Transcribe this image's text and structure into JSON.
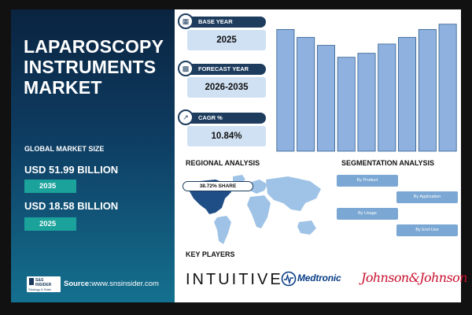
{
  "title": {
    "line1": "LAPAROSCOPY",
    "line2": "INSTRUMENTS",
    "line3": "MARKET"
  },
  "market_size": {
    "label": "GLOBAL MARKET SIZE",
    "value_2035": "USD 51.99 BILLION",
    "year_2035": "2035",
    "value_2025": "USD 18.58 BILLION",
    "year_2025": "2025"
  },
  "source": {
    "logo_line1": "S&S",
    "logo_line2": "INSIDER",
    "logo_tagline": "Strategy & Stats",
    "label": "Source:",
    "url": "www.snsinsider.com"
  },
  "cards": [
    {
      "heading": "BASE YEAR",
      "value": "2025",
      "icon": "calendar-icon"
    },
    {
      "heading": "FORECAST YEAR",
      "value": "2026-2035",
      "icon": "chart-icon"
    },
    {
      "heading": "CAGR %",
      "value": "10.84%",
      "icon": "growth-icon"
    }
  ],
  "regional": {
    "title": "REGIONAL ANALYSIS",
    "share": "38.72% SHARE"
  },
  "segmentation": {
    "title": "SEGMENTATION ANALYSIS",
    "items": [
      "By Product",
      "By Application",
      "By Usage",
      "By End-Use"
    ]
  },
  "key_players": {
    "title": "KEY PLAYERS",
    "players": [
      "INTUITIVE",
      "Medtronic",
      "Johnson&Johnson"
    ]
  },
  "chart_data": {
    "type": "bar",
    "values": [
      92,
      86,
      80,
      71,
      74,
      81,
      86,
      92,
      96
    ],
    "ylim": [
      0,
      100
    ],
    "bar_color": "#8fb1df",
    "bar_border": "#2f5e8f"
  },
  "colors": {
    "panel_top": "#0a2440",
    "panel_bottom": "#14708f",
    "accent": "#1aa29b",
    "card_head": "#1d3c5e",
    "card_body": "#cfe1f3",
    "map_light": "#9fc3e6",
    "map_dark": "#1f4e86",
    "segment": "#7aa7d3"
  }
}
